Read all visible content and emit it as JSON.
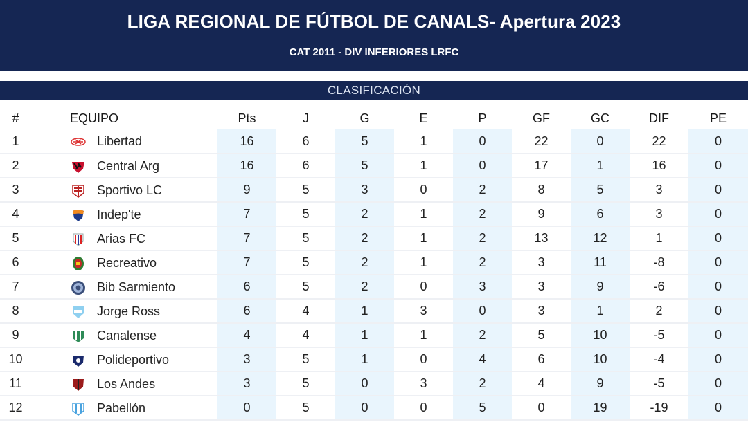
{
  "header": {
    "title": "LIGA REGIONAL DE FÚTBOL DE CANALS- Apertura 2023",
    "subtitle": "CAT 2011 - DIV INFERIORES LRFC"
  },
  "section": {
    "title": "CLASIFICACIÓN"
  },
  "columns": {
    "pos": "#",
    "team": "EQUIPO",
    "pts": "Pts",
    "j": "J",
    "g": "G",
    "e": "E",
    "p": "P",
    "gf": "GF",
    "gc": "GC",
    "dif": "DIF",
    "pe": "PE"
  },
  "rows": [
    {
      "pos": "1",
      "team": "Libertad",
      "crest": "libertad-crest-icon",
      "pts": "16",
      "j": "6",
      "g": "5",
      "e": "1",
      "p": "0",
      "gf": "22",
      "gc": "0",
      "dif": "22",
      "pe": "0"
    },
    {
      "pos": "2",
      "team": "Central Arg",
      "crest": "central-arg-crest-icon",
      "pts": "16",
      "j": "6",
      "g": "5",
      "e": "1",
      "p": "0",
      "gf": "17",
      "gc": "1",
      "dif": "16",
      "pe": "0"
    },
    {
      "pos": "3",
      "team": "Sportivo LC",
      "crest": "sportivo-lc-crest-icon",
      "pts": "9",
      "j": "5",
      "g": "3",
      "e": "0",
      "p": "2",
      "gf": "8",
      "gc": "5",
      "dif": "3",
      "pe": "0"
    },
    {
      "pos": "4",
      "team": "Indep'te",
      "crest": "indepte-crest-icon",
      "pts": "7",
      "j": "5",
      "g": "2",
      "e": "1",
      "p": "2",
      "gf": "9",
      "gc": "6",
      "dif": "3",
      "pe": "0"
    },
    {
      "pos": "5",
      "team": "Arias FC",
      "crest": "arias-fc-crest-icon",
      "pts": "7",
      "j": "5",
      "g": "2",
      "e": "1",
      "p": "2",
      "gf": "13",
      "gc": "12",
      "dif": "1",
      "pe": "0"
    },
    {
      "pos": "6",
      "team": "Recreativo",
      "crest": "recreativo-crest-icon",
      "pts": "7",
      "j": "5",
      "g": "2",
      "e": "1",
      "p": "2",
      "gf": "3",
      "gc": "11",
      "dif": "-8",
      "pe": "0"
    },
    {
      "pos": "7",
      "team": "Bib Sarmiento",
      "crest": "bib-sarmiento-crest-icon",
      "pts": "6",
      "j": "5",
      "g": "2",
      "e": "0",
      "p": "3",
      "gf": "3",
      "gc": "9",
      "dif": "-6",
      "pe": "0"
    },
    {
      "pos": "8",
      "team": "Jorge Ross",
      "crest": "jorge-ross-crest-icon",
      "pts": "6",
      "j": "4",
      "g": "1",
      "e": "3",
      "p": "0",
      "gf": "3",
      "gc": "1",
      "dif": "2",
      "pe": "0"
    },
    {
      "pos": "9",
      "team": "Canalense",
      "crest": "canalense-crest-icon",
      "pts": "4",
      "j": "4",
      "g": "1",
      "e": "1",
      "p": "2",
      "gf": "5",
      "gc": "10",
      "dif": "-5",
      "pe": "0"
    },
    {
      "pos": "10",
      "team": "Polideportivo",
      "crest": "polideportivo-crest-icon",
      "pts": "3",
      "j": "5",
      "g": "1",
      "e": "0",
      "p": "4",
      "gf": "6",
      "gc": "10",
      "dif": "-4",
      "pe": "0"
    },
    {
      "pos": "11",
      "team": "Los Andes",
      "crest": "los-andes-crest-icon",
      "pts": "3",
      "j": "5",
      "g": "0",
      "e": "3",
      "p": "2",
      "gf": "4",
      "gc": "9",
      "dif": "-5",
      "pe": "0"
    },
    {
      "pos": "12",
      "team": "Pabellón",
      "crest": "pabellon-crest-icon",
      "pts": "0",
      "j": "5",
      "g": "0",
      "e": "0",
      "p": "5",
      "gf": "0",
      "gc": "19",
      "dif": "-19",
      "pe": "0"
    }
  ],
  "colors": {
    "header_bg": "#152653",
    "header_text": "#ffffff",
    "shade_column": "#e9f5fd",
    "row_divider": "#eef0f4"
  }
}
